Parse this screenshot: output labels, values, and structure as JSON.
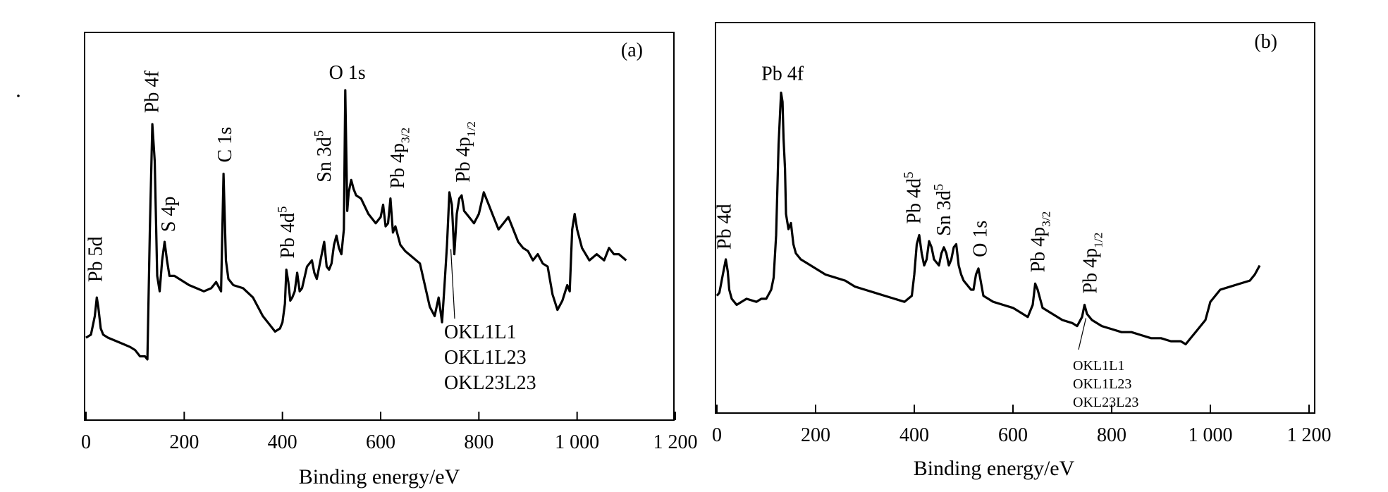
{
  "chart_data": [
    {
      "type": "line",
      "panel_label": "(a)",
      "xlabel": "Binding energy/eV",
      "ylabel": "",
      "xlim": [
        0,
        1200
      ],
      "ylim": [
        0,
        100
      ],
      "x_ticks": [
        {
          "value": 0,
          "label": "0"
        },
        {
          "value": 200,
          "label": "200"
        },
        {
          "value": 400,
          "label": "400"
        },
        {
          "value": 600,
          "label": "600"
        },
        {
          "value": 800,
          "label": "800"
        },
        {
          "value": 1000,
          "label": "1 000"
        },
        {
          "value": 1200,
          "label": "1 200"
        }
      ],
      "series": [
        {
          "x": [
            0,
            10,
            18,
            22,
            25,
            30,
            35,
            45,
            60,
            75,
            90,
            100,
            110,
            120,
            125,
            130,
            135,
            140,
            145,
            150,
            155,
            160,
            165,
            170,
            180,
            190,
            200,
            210,
            225,
            240,
            255,
            265,
            275,
            280,
            285,
            290,
            295,
            300,
            320,
            340,
            360,
            375,
            385,
            395,
            400,
            405,
            408,
            412,
            416,
            420,
            425,
            430,
            435,
            440,
            450,
            460,
            465,
            470,
            475,
            480,
            485,
            490,
            495,
            500,
            505,
            510,
            515,
            520,
            525,
            528,
            532,
            535,
            540,
            545,
            550,
            560,
            575,
            590,
            600,
            605,
            610,
            615,
            620,
            625,
            630,
            640,
            650,
            665,
            680,
            690,
            700,
            710,
            718,
            725,
            730,
            735,
            740,
            745,
            750,
            755,
            760,
            765,
            770,
            780,
            790,
            800,
            810,
            820,
            830,
            840,
            850,
            860,
            870,
            880,
            890,
            900,
            910,
            920,
            930,
            940,
            950,
            960,
            970,
            980,
            985,
            990,
            995,
            1000,
            1010,
            1025,
            1040,
            1055,
            1065,
            1075,
            1085,
            1100
          ],
          "y": [
            15,
            16,
            22,
            28,
            25,
            18,
            16,
            15,
            14,
            13,
            12,
            11,
            9,
            9,
            8,
            50,
            84,
            72,
            35,
            30,
            40,
            46,
            40,
            35,
            35,
            34,
            33,
            32,
            31,
            30,
            31,
            33,
            30,
            68,
            40,
            34,
            33,
            32,
            31,
            28,
            22,
            19,
            17,
            18,
            20,
            26,
            37,
            33,
            27,
            28,
            30,
            36,
            30,
            31,
            38,
            40,
            36,
            34,
            38,
            42,
            46,
            38,
            37,
            39,
            45,
            48,
            44,
            42,
            50,
            95,
            56,
            62,
            66,
            63,
            61,
            60,
            55,
            52,
            54,
            58,
            51,
            52,
            60,
            49,
            51,
            45,
            43,
            41,
            39,
            32,
            25,
            22,
            28,
            20,
            32,
            45,
            62,
            58,
            42,
            55,
            60,
            61,
            56,
            54,
            52,
            55,
            62,
            58,
            54,
            50,
            52,
            54,
            50,
            46,
            44,
            43,
            40,
            42,
            39,
            38,
            29,
            24,
            27,
            32,
            30,
            50,
            55,
            50,
            44,
            40,
            42,
            40,
            44,
            42,
            42,
            40
          ]
        }
      ],
      "annotations": [
        {
          "text": "Pb 5d",
          "x": 22,
          "y": 28
        },
        {
          "text": "Pb 4f",
          "x": 140,
          "y": 84
        },
        {
          "text": "S 4p",
          "x": 165,
          "y": 46
        },
        {
          "text": "C 1s",
          "x": 280,
          "y": 68
        },
        {
          "text": "Pb 4d",
          "sup": "5",
          "x": 408,
          "y": 37
        },
        {
          "text": "Sn 3d",
          "sup": "5",
          "x": 485,
          "y": 62
        },
        {
          "text": "O 1s",
          "x": 532,
          "y": 95
        },
        {
          "text": "Pb 4p",
          "sub": "3/2",
          "x": 620,
          "y": 60
        },
        {
          "text": "Pb 4p",
          "sub": "1/2",
          "x": 745,
          "y": 62
        },
        {
          "text": "OKL1L1",
          "x": 740,
          "y": 45
        },
        {
          "text": "OKL1L23",
          "x": 740,
          "y": 45
        },
        {
          "text": "OKL23L23",
          "x": 740,
          "y": 45
        }
      ]
    },
    {
      "type": "line",
      "panel_label": "(b)",
      "xlabel": "Binding energy/eV",
      "ylabel": "",
      "xlim": [
        0,
        1200
      ],
      "ylim": [
        0,
        100
      ],
      "x_ticks": [
        {
          "value": 0,
          "label": "0"
        },
        {
          "value": 200,
          "label": "200"
        },
        {
          "value": 400,
          "label": "400"
        },
        {
          "value": 600,
          "label": "600"
        },
        {
          "value": 800,
          "label": "800"
        },
        {
          "value": 1000,
          "label": "1 000"
        },
        {
          "value": 1200,
          "label": "1 200"
        }
      ],
      "series": [
        {
          "x": [
            0,
            5,
            12,
            18,
            22,
            25,
            30,
            40,
            60,
            80,
            90,
            100,
            110,
            115,
            120,
            125,
            130,
            133,
            135,
            138,
            140,
            145,
            150,
            155,
            160,
            170,
            180,
            200,
            220,
            240,
            260,
            280,
            300,
            320,
            340,
            360,
            380,
            395,
            400,
            405,
            410,
            415,
            420,
            425,
            430,
            435,
            440,
            450,
            455,
            460,
            465,
            470,
            475,
            480,
            485,
            490,
            495,
            500,
            510,
            515,
            520,
            525,
            530,
            540,
            560,
            580,
            600,
            620,
            630,
            640,
            645,
            650,
            660,
            680,
            700,
            720,
            730,
            740,
            745,
            750,
            760,
            780,
            800,
            820,
            840,
            860,
            880,
            900,
            920,
            940,
            950,
            960,
            970,
            980,
            990,
            1000,
            1020,
            1040,
            1060,
            1080,
            1090,
            1100
          ],
          "y": [
            28,
            29,
            35,
            40,
            36,
            30,
            27,
            25,
            27,
            26,
            27,
            27,
            30,
            34,
            48,
            78,
            95,
            92,
            80,
            70,
            55,
            50,
            52,
            45,
            42,
            40,
            39,
            37,
            35,
            34,
            33,
            31,
            30,
            29,
            28,
            27,
            26,
            28,
            35,
            45,
            48,
            42,
            38,
            40,
            46,
            44,
            40,
            38,
            42,
            44,
            42,
            38,
            40,
            44,
            45,
            38,
            35,
            33,
            31,
            30,
            30,
            35,
            37,
            28,
            26,
            25,
            24,
            22,
            21,
            25,
            32,
            30,
            24,
            22,
            20,
            19,
            18,
            21,
            25,
            22,
            20,
            18,
            17,
            16,
            16,
            15,
            14,
            14,
            13,
            13,
            12,
            14,
            16,
            18,
            20,
            26,
            30,
            31,
            32,
            33,
            35,
            38
          ]
        }
      ],
      "annotations": [
        {
          "text": "Pb 4d",
          "x": 15,
          "y": 40
        },
        {
          "text": "Pb 4f",
          "x": 133,
          "y": 95
        },
        {
          "text": "Pb 4d",
          "sup": "5",
          "x": 405,
          "y": 48
        },
        {
          "text": "Sn 3d",
          "sup": "5",
          "x": 460,
          "y": 44
        },
        {
          "text": "O 1s",
          "x": 525,
          "y": 37
        },
        {
          "text": "Pb 4p",
          "sub": "3/2",
          "x": 645,
          "y": 32
        },
        {
          "text": "Pb 4p",
          "sub": "1/2",
          "x": 745,
          "y": 25
        },
        {
          "text": "OKL1L1",
          "x": 745,
          "y": 22
        },
        {
          "text": "OKL1L23",
          "x": 745,
          "y": 22
        },
        {
          "text": "OKL23L23",
          "x": 745,
          "y": 22
        }
      ]
    }
  ]
}
